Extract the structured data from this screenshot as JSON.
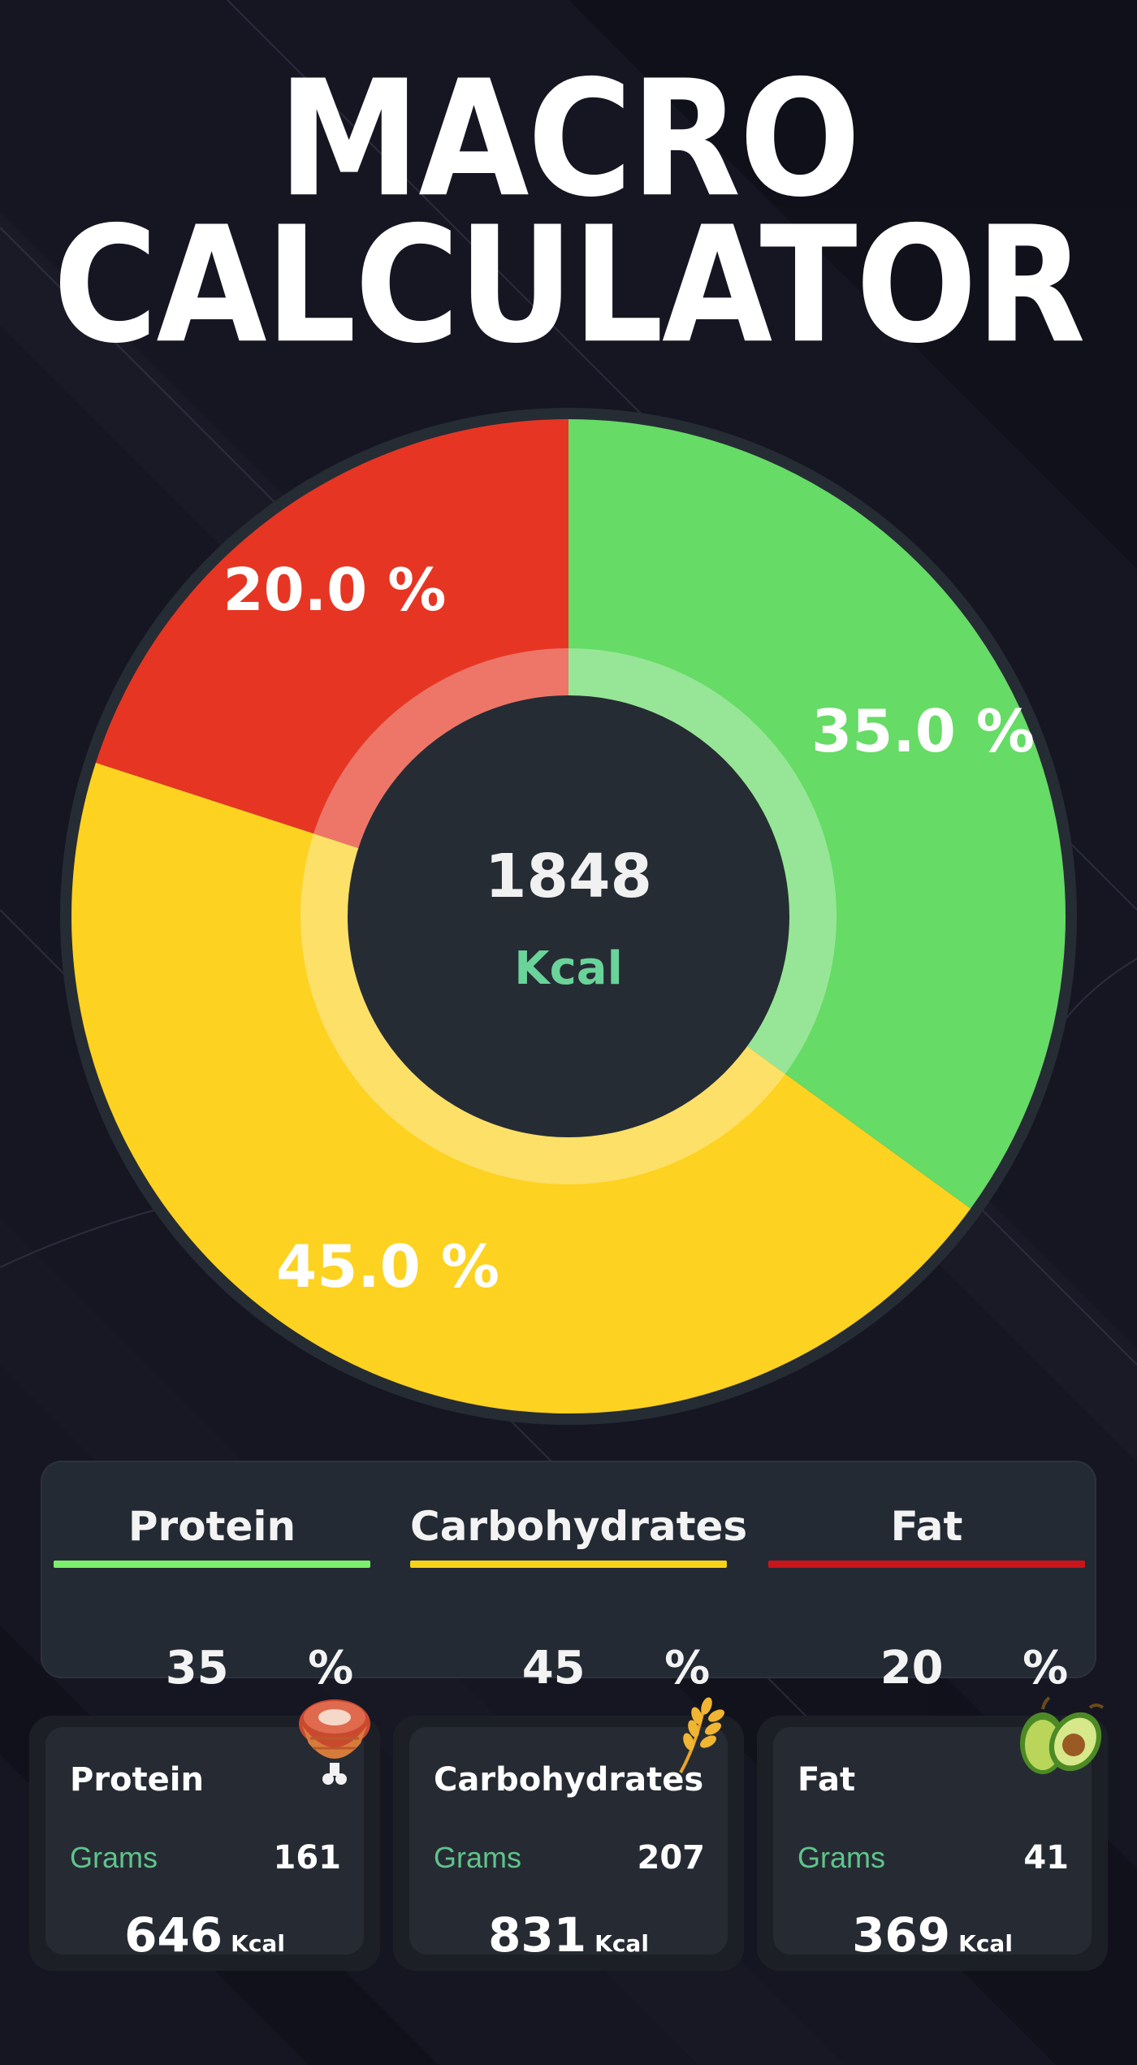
{
  "title": {
    "line1": "MACRO",
    "line2": "CALCULATOR"
  },
  "chart_data": {
    "type": "pie",
    "style": "donut",
    "slices": [
      {
        "name": "Protein",
        "value": 35.0,
        "label": "35.0 %",
        "color": "#66db66"
      },
      {
        "name": "Carbohydrates",
        "value": 45.0,
        "label": "45.0 %",
        "color": "#fdd220"
      },
      {
        "name": "Fat",
        "value": 20.0,
        "label": "20.0 %",
        "color": "#e63623"
      }
    ],
    "center": {
      "value": "1848",
      "unit": "Kcal"
    }
  },
  "summary": [
    {
      "label": "Protein",
      "percent": "35",
      "sign": "%",
      "color": "#7cf06c"
    },
    {
      "label": "Carbohydrates",
      "percent": "45",
      "sign": "%",
      "color": "#f6d21b"
    },
    {
      "label": "Fat",
      "percent": "20",
      "sign": "%",
      "color": "#c8151b"
    }
  ],
  "cards": [
    {
      "title": "Protein",
      "grams_label": "Grams",
      "grams": "161",
      "kcal": "646",
      "kcal_unit": "Kcal",
      "icon": "meat-icon"
    },
    {
      "title": "Carbohydrates",
      "grams_label": "Grams",
      "grams": "207",
      "kcal": "831",
      "kcal_unit": "Kcal",
      "icon": "wheat-icon"
    },
    {
      "title": "Fat",
      "grams_label": "Grams",
      "grams": "41",
      "kcal": "369",
      "kcal_unit": "Kcal",
      "icon": "avocado-icon"
    }
  ]
}
